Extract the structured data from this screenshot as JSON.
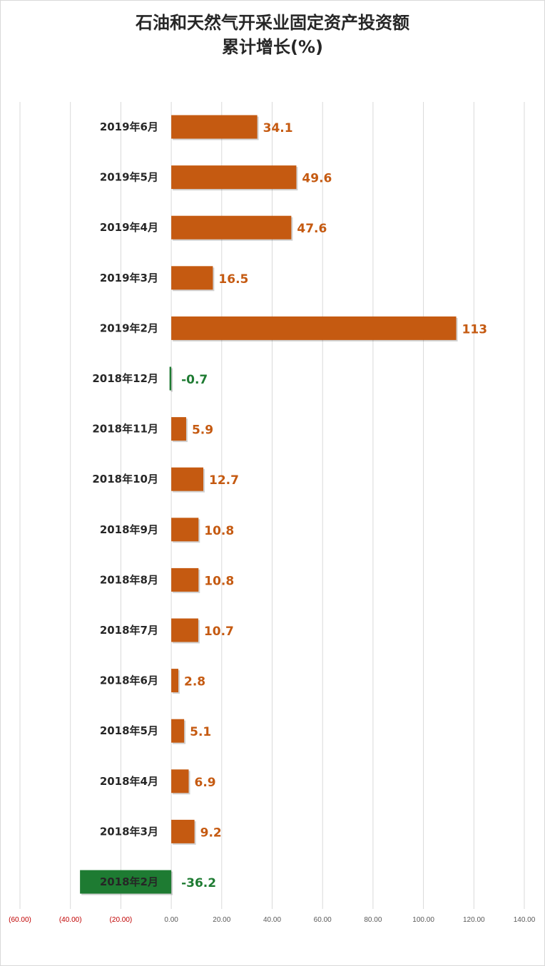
{
  "chart_data": {
    "type": "bar",
    "orientation": "horizontal",
    "title": "石油和天然气开采业固定资产投资额",
    "subtitle": "累计增长(%)",
    "categories": [
      "2019年6月",
      "2019年5月",
      "2019年4月",
      "2019年3月",
      "2019年2月",
      "2018年12月",
      "2018年11月",
      "2018年10月",
      "2018年9月",
      "2018年8月",
      "2018年7月",
      "2018年6月",
      "2018年5月",
      "2018年4月",
      "2018年3月",
      "2018年2月"
    ],
    "values": [
      34.1,
      49.6,
      47.6,
      16.5,
      113,
      -0.7,
      5.9,
      12.7,
      10.8,
      10.8,
      10.7,
      2.8,
      5.1,
      6.9,
      9.2,
      -36.2
    ],
    "value_labels": [
      "34.1",
      "49.6",
      "47.6",
      "16.5",
      "113",
      "-0.7",
      "5.9",
      "12.7",
      "10.8",
      "10.8",
      "10.7",
      "2.8",
      "5.1",
      "6.9",
      "9.2",
      "-36.2"
    ],
    "xlim": [
      -60,
      140
    ],
    "xticks": [
      -60,
      -40,
      -20,
      0,
      20,
      40,
      60,
      80,
      100,
      120,
      140
    ],
    "xtick_labels": [
      "(60.00)",
      "(40.00)",
      "(20.00)",
      "0.00",
      "20.00",
      "40.00",
      "60.00",
      "80.00",
      "100.00",
      "120.00",
      "140.00"
    ],
    "grid": true,
    "legend": "none",
    "colors": {
      "positive": "#c55a11",
      "negative": "#1e7b32",
      "positive_label": "#c55a11",
      "negative_label": "#1e7b32",
      "tick_negative": "#c00000",
      "tick_positive": "#595959",
      "grid": "#d9d9d9"
    }
  }
}
